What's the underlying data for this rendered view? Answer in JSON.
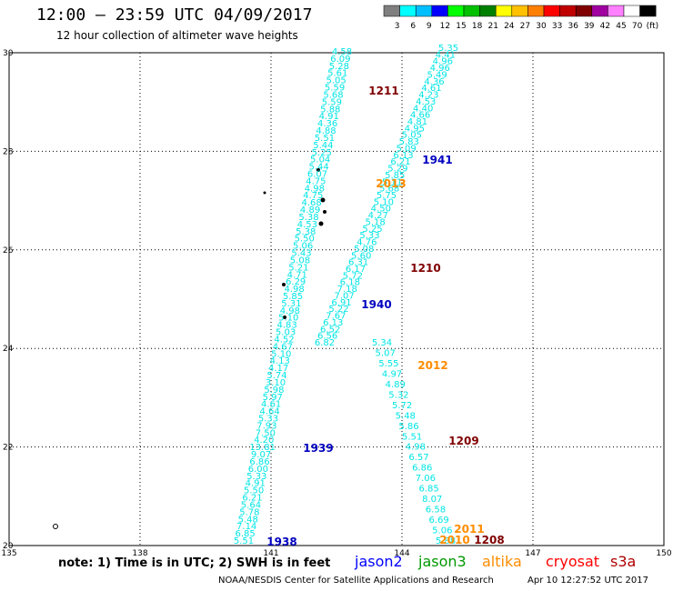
{
  "header": {
    "title": "12:00 – 23:59 UTC 04/09/2017",
    "subtitle": "12 hour collection of altimeter wave heights"
  },
  "colorbar": {
    "labels": [
      "3",
      "6",
      "9",
      "12",
      "15",
      "18",
      "21",
      "24",
      "27",
      "30",
      "33",
      "36",
      "39",
      "42",
      "45",
      "70"
    ],
    "unit": "(ft)",
    "colors": [
      "#7f7f7f",
      "#00ffff",
      "#00bfff",
      "#0000ff",
      "#00ff00",
      "#00c000",
      "#008000",
      "#ffff00",
      "#ffc000",
      "#ff8000",
      "#ff0000",
      "#c00000",
      "#800000",
      "#a000a0",
      "#ff80ff",
      "#ffffff",
      "#000000"
    ]
  },
  "map": {
    "lon_ticks": [
      "135",
      "138",
      "141",
      "144",
      "147",
      "150"
    ],
    "lat_ticks": [
      "30",
      "28",
      "26",
      "24",
      "22",
      "20"
    ],
    "lon_range": [
      135,
      150
    ],
    "lat_range": [
      20,
      30
    ]
  },
  "tracks": [
    {
      "color": "#00e5e5",
      "values": [
        "4.58",
        "6.09",
        "5.28",
        "5.61",
        "5.05",
        "5.59",
        "5.68",
        "5.59",
        "5.88",
        "4.91",
        "4.36",
        "4.88",
        "5.51",
        "5.44",
        "5.25",
        "5.04",
        "5.44",
        "6.07",
        "4.75",
        "4.98",
        "4.75",
        "4.68",
        "4.89",
        "5.38",
        "4.53",
        "5.38",
        "5.50",
        "5.06",
        "5.43",
        "5.08",
        "5.21",
        "4.71",
        "6.29",
        "4.98",
        "5.85",
        "5.31",
        "4.98",
        "5.10",
        "4.83",
        "5.03",
        "4.52",
        "4.67",
        "5.10",
        "4.13",
        "4.17",
        "5.74",
        "3.10",
        "5.98",
        "5.97",
        "4.61",
        "4.64",
        "5.33",
        "7.93",
        "7.50",
        "4.20",
        "13.81",
        "9.07",
        "6.86",
        "6.00",
        "5.33",
        "4.91",
        "5.50",
        "6.21",
        "5.64",
        "5.78",
        "5.48",
        "7.14",
        "6.85",
        "5.51"
      ]
    },
    {
      "color": "#00e5e5",
      "values": [
        "5.35",
        "4.41",
        "4.96",
        "4.96",
        "5.49",
        "4.36",
        "4.61",
        "4.23",
        "4.53",
        "4.40",
        "4.66",
        "4.81",
        "4.95",
        "5.05",
        "5.83",
        "5.09",
        "6.13",
        "6.21",
        "5.29",
        "5.85",
        "5.11",
        "5.68",
        "5.75",
        "5.10",
        "4.50",
        "4.27",
        "5.18",
        "5.25",
        "5.33",
        "4.76",
        "5.08",
        "5.60",
        "6.31",
        "6.17",
        "5.72",
        "6.18",
        "7.18",
        "7.07",
        "6.91",
        "5.22",
        "7.67",
        "6.13",
        "6.52",
        "6.56",
        "6.82"
      ]
    },
    {
      "color": "#00e5e5",
      "values": [
        "5.34",
        "5.07",
        "5.55",
        "4.97",
        "4.89",
        "5.32",
        "5.72",
        "5.48",
        "5.86",
        "5.51",
        "4.98",
        "6.57",
        "6.86",
        "7.06",
        "6.85",
        "8.07",
        "6.58",
        "6.69",
        "5.06",
        "5.88"
      ]
    }
  ],
  "passes": [
    {
      "label": "1211",
      "color": "#800000"
    },
    {
      "label": "1941",
      "color": "#0000c0"
    },
    {
      "label": "2013",
      "color": "#ff8c00"
    },
    {
      "label": "1210",
      "color": "#800000"
    },
    {
      "label": "1940",
      "color": "#0000c0"
    },
    {
      "label": "2012",
      "color": "#ff8c00"
    },
    {
      "label": "1209",
      "color": "#800000"
    },
    {
      "label": "1939",
      "color": "#0000c0"
    },
    {
      "label": "2011",
      "color": "#ff8c00"
    },
    {
      "label": "1208",
      "color": "#800000"
    },
    {
      "label": "2010",
      "color": "#ff8c00"
    },
    {
      "label": "1938",
      "color": "#0000c0"
    }
  ],
  "legend": {
    "note": "note: 1) Time is in UTC; 2) SWH is in feet",
    "satellites": [
      {
        "name": "jason2",
        "color": "#0000ff"
      },
      {
        "name": "jason3",
        "color": "#009900"
      },
      {
        "name": "altika",
        "color": "#ff8c00"
      },
      {
        "name": "cryosat",
        "color": "#ff0000"
      },
      {
        "name": "s3a",
        "color": "#b00000"
      }
    ]
  },
  "footer": {
    "credit": "NOAA/NESDIS Center for Satellite Applications and Research",
    "time": "Apr 10 12:27:52 UTC 2017"
  }
}
